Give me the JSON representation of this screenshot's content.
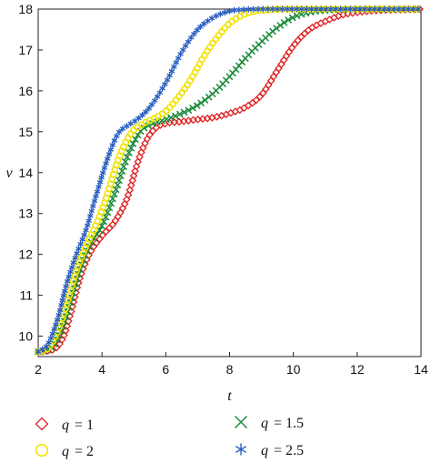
{
  "chart_data": {
    "type": "scatter",
    "title": "",
    "xlabel": "t",
    "ylabel": "v",
    "xlim": [
      2,
      14
    ],
    "ylim": [
      9.5,
      18
    ],
    "xticks": [
      2,
      4,
      6,
      8,
      10,
      12,
      14
    ],
    "yticks": [
      10,
      11,
      12,
      13,
      14,
      15,
      16,
      17,
      18
    ],
    "grid": false,
    "legend": "bottom, two columns",
    "series": [
      {
        "name": "q = 1",
        "qlabel": "q",
        "qvalue": "= 1",
        "marker": "diamond",
        "color": "#e02020",
        "x": [
          2.0,
          2.5,
          2.8,
          3.0,
          3.3,
          3.6,
          4.0,
          4.4,
          4.8,
          5.1,
          5.4,
          5.7,
          6.0,
          6.5,
          7.0,
          7.5,
          8.0,
          8.5,
          9.0,
          9.5,
          10.0,
          10.5,
          11.0,
          11.5,
          12.0,
          12.5,
          13.0,
          14.0
        ],
        "y": [
          9.62,
          9.68,
          10.0,
          10.5,
          11.4,
          12.0,
          12.45,
          12.8,
          13.4,
          14.2,
          14.8,
          15.1,
          15.2,
          15.25,
          15.3,
          15.35,
          15.45,
          15.6,
          15.9,
          16.5,
          17.1,
          17.5,
          17.7,
          17.85,
          17.92,
          17.96,
          17.98,
          18.0
        ]
      },
      {
        "name": "q = 1.5",
        "qlabel": "q",
        "qvalue": "= 1.5",
        "marker": "x",
        "color": "#1a8a3a",
        "x": [
          2.0,
          2.4,
          2.7,
          3.0,
          3.3,
          3.6,
          4.0,
          4.4,
          4.8,
          5.2,
          5.6,
          6.0,
          6.5,
          7.0,
          7.5,
          8.0,
          8.5,
          9.0,
          9.5,
          10.0,
          10.5,
          11.0,
          11.5,
          12.0,
          13.0,
          14.0
        ],
        "y": [
          9.62,
          9.7,
          10.1,
          10.8,
          11.6,
          12.2,
          12.7,
          13.5,
          14.4,
          15.0,
          15.2,
          15.3,
          15.45,
          15.65,
          15.95,
          16.35,
          16.8,
          17.2,
          17.55,
          17.8,
          17.92,
          17.97,
          17.99,
          18.0,
          18.0,
          18.0
        ]
      },
      {
        "name": "q = 2",
        "qlabel": "q",
        "qvalue": "= 2",
        "marker": "circle",
        "color": "#f2e200",
        "x": [
          2.0,
          2.3,
          2.6,
          2.9,
          3.2,
          3.5,
          3.8,
          4.1,
          4.5,
          4.9,
          5.3,
          5.7,
          6.0,
          6.4,
          6.8,
          7.2,
          7.6,
          8.0,
          8.4,
          8.8,
          9.2,
          9.6,
          10.0,
          10.5,
          11.0,
          12.0,
          13.0,
          14.0
        ],
        "y": [
          9.62,
          9.7,
          10.1,
          10.8,
          11.6,
          12.2,
          12.7,
          13.3,
          14.3,
          14.95,
          15.2,
          15.35,
          15.5,
          15.85,
          16.3,
          16.85,
          17.3,
          17.65,
          17.85,
          17.95,
          17.98,
          18.0,
          18.0,
          18.0,
          18.0,
          18.0,
          18.0,
          18.0
        ]
      },
      {
        "name": "q = 2.5",
        "qlabel": "q",
        "qvalue": "= 2.5",
        "marker": "star",
        "color": "#2a5fc0",
        "x": [
          2.0,
          2.3,
          2.6,
          2.9,
          3.2,
          3.5,
          3.8,
          4.2,
          4.5,
          4.8,
          5.1,
          5.5,
          6.0,
          6.5,
          7.0,
          7.5,
          8.0,
          8.5,
          9.0,
          9.5,
          10.0,
          11.0,
          12.0,
          13.0,
          14.0
        ],
        "y": [
          9.62,
          9.8,
          10.4,
          11.3,
          12.0,
          12.6,
          13.4,
          14.4,
          14.95,
          15.15,
          15.3,
          15.6,
          16.2,
          16.95,
          17.5,
          17.8,
          17.95,
          17.99,
          18.0,
          18.0,
          18.0,
          18.0,
          18.0,
          18.0,
          18.0
        ]
      }
    ]
  }
}
